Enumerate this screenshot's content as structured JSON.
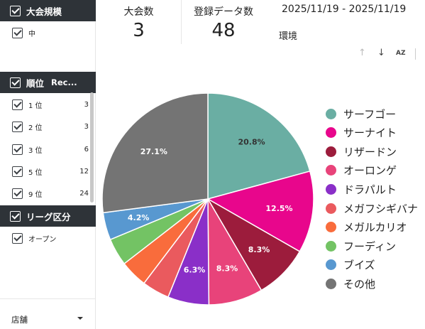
{
  "sidebar": {
    "scale_filter": {
      "title": "大会規模",
      "items": [
        {
          "label": "中",
          "count": ""
        }
      ]
    },
    "rank_filter": {
      "title": "順位",
      "extra": "Rec...",
      "items": [
        {
          "label": "1 位",
          "count": "3"
        },
        {
          "label": "2 位",
          "count": "3"
        },
        {
          "label": "3 位",
          "count": "6"
        },
        {
          "label": "5 位",
          "count": "12"
        },
        {
          "label": "9 位",
          "count": "24"
        }
      ]
    },
    "league_filter": {
      "title": "リーグ区分",
      "items": [
        {
          "label": "オープン",
          "count": ""
        }
      ]
    },
    "store": {
      "label": "店舗"
    }
  },
  "kpis": [
    {
      "label": "大会数",
      "value": "3"
    },
    {
      "label": "登録データ数",
      "value": "48"
    }
  ],
  "date_range": "2025/11/19 - 2025/11/19",
  "env_label": "環境",
  "toolbar": {
    "up_icon": "↑",
    "down_icon": "↓",
    "sort_icon": "AZ"
  },
  "chart_data": {
    "type": "pie",
    "title": "",
    "legend_position": "right",
    "slices": [
      {
        "name": "サーフゴー",
        "value": 20.8,
        "label": "20.8%",
        "color": "#6aaea3"
      },
      {
        "name": "サーナイト",
        "value": 12.5,
        "label": "12.5%",
        "color": "#e8068c"
      },
      {
        "name": "リザードン",
        "value": 8.3,
        "label": "8.3%",
        "color": "#9c1c3c"
      },
      {
        "name": "オーロンゲ",
        "value": 8.3,
        "label": "8.3%",
        "color": "#e8437a"
      },
      {
        "name": "ドラパルト",
        "value": 6.3,
        "label": "6.3%",
        "color": "#8a2fc8"
      },
      {
        "name": "メガフシギバナ",
        "value": 4.2,
        "label": "",
        "color": "#ea5a5e"
      },
      {
        "name": "メガルカリオ",
        "value": 4.2,
        "label": "",
        "color": "#f96c3c"
      },
      {
        "name": "フーディン",
        "value": 4.2,
        "label": "",
        "color": "#73c364"
      },
      {
        "name": "ブイズ",
        "value": 4.2,
        "label": "4.2%",
        "color": "#5898d0"
      },
      {
        "name": "その他",
        "value": 27.1,
        "label": "27.1%",
        "color": "#747474"
      }
    ]
  }
}
